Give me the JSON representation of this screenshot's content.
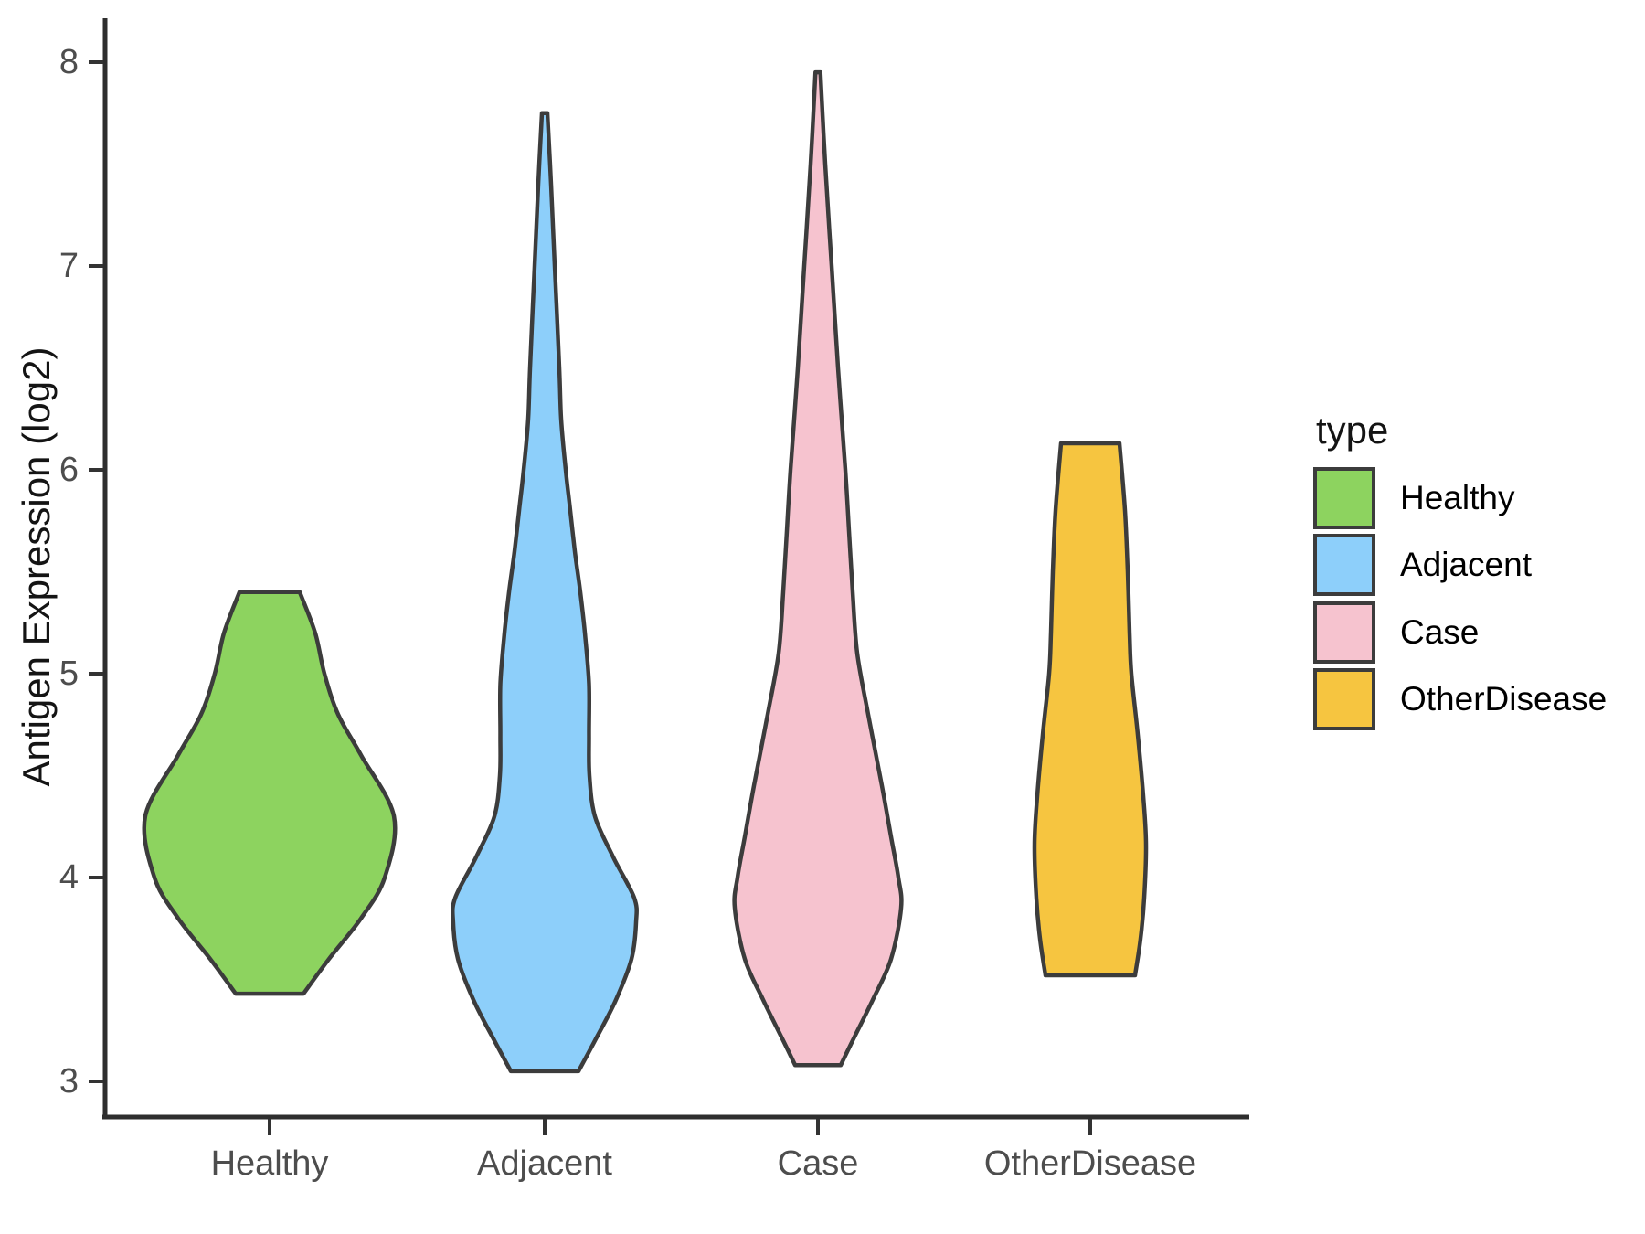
{
  "chart_data": {
    "type": "violin",
    "title": "",
    "xlabel": "",
    "ylabel": "Antigen Expression (log2)",
    "categories": [
      "Healthy",
      "Adjacent",
      "Case",
      "OtherDisease"
    ],
    "y_ticks": [
      "3",
      "4",
      "5",
      "6",
      "7",
      "8"
    ],
    "y_tick_values": [
      3,
      4,
      5,
      6,
      7,
      8
    ],
    "ylim": [
      2.85,
      8.25
    ],
    "grid": false,
    "background": "#FFFFFF",
    "outline_color": "#3C3C3C",
    "axis_color": "#2E2E2E",
    "tick_text_color": "#4D4D4D",
    "legend": {
      "title": "type",
      "position": "right",
      "entries": [
        {
          "label": "Healthy",
          "color": "#8DD35F"
        },
        {
          "label": "Adjacent",
          "color": "#8DCFFA"
        },
        {
          "label": "Case",
          "color": "#F6C3CF"
        },
        {
          "label": "OtherDisease",
          "color": "#F6C540"
        }
      ]
    },
    "series": [
      {
        "name": "Healthy",
        "color": "#8DD35F",
        "min": 3.43,
        "max": 5.4,
        "flat_top": true,
        "flat_bottom": true,
        "profile": [
          [
            5.4,
            0.22
          ],
          [
            5.2,
            0.333
          ],
          [
            5.0,
            0.4
          ],
          [
            4.8,
            0.5
          ],
          [
            4.6,
            0.667
          ],
          [
            4.3,
            0.907
          ],
          [
            4.0,
            0.84
          ],
          [
            3.8,
            0.667
          ],
          [
            3.6,
            0.433
          ],
          [
            3.43,
            0.247
          ]
        ]
      },
      {
        "name": "Adjacent",
        "color": "#8DCFFA",
        "min": 3.05,
        "max": 7.75,
        "flat_top": false,
        "flat_bottom": true,
        "profile": [
          [
            7.75,
            0.02
          ],
          [
            7.4,
            0.047
          ],
          [
            7.0,
            0.073
          ],
          [
            6.5,
            0.107
          ],
          [
            6.25,
            0.12
          ],
          [
            6.0,
            0.153
          ],
          [
            5.8,
            0.187
          ],
          [
            5.6,
            0.22
          ],
          [
            5.4,
            0.26
          ],
          [
            5.2,
            0.293
          ],
          [
            4.95,
            0.323
          ],
          [
            4.7,
            0.323
          ],
          [
            4.5,
            0.327
          ],
          [
            4.3,
            0.367
          ],
          [
            4.1,
            0.5
          ],
          [
            3.9,
            0.653
          ],
          [
            3.78,
            0.667
          ],
          [
            3.6,
            0.633
          ],
          [
            3.4,
            0.52
          ],
          [
            3.2,
            0.367
          ],
          [
            3.05,
            0.247
          ]
        ]
      },
      {
        "name": "Case",
        "color": "#F6C3CF",
        "min": 3.08,
        "max": 7.95,
        "flat_top": false,
        "flat_bottom": true,
        "profile": [
          [
            7.95,
            0.018
          ],
          [
            7.5,
            0.053
          ],
          [
            7.0,
            0.1
          ],
          [
            6.5,
            0.147
          ],
          [
            6.0,
            0.2
          ],
          [
            5.7,
            0.227
          ],
          [
            5.4,
            0.253
          ],
          [
            5.1,
            0.287
          ],
          [
            4.8,
            0.367
          ],
          [
            4.45,
            0.467
          ],
          [
            4.2,
            0.533
          ],
          [
            4.0,
            0.587
          ],
          [
            3.85,
            0.607
          ],
          [
            3.6,
            0.533
          ],
          [
            3.4,
            0.4
          ],
          [
            3.2,
            0.253
          ],
          [
            3.08,
            0.167
          ]
        ]
      },
      {
        "name": "OtherDisease",
        "color": "#F6C540",
        "min": 3.52,
        "max": 6.13,
        "flat_top": true,
        "flat_bottom": true,
        "profile": [
          [
            6.13,
            0.213
          ],
          [
            5.8,
            0.253
          ],
          [
            5.5,
            0.273
          ],
          [
            5.2,
            0.287
          ],
          [
            5.0,
            0.3
          ],
          [
            4.7,
            0.347
          ],
          [
            4.4,
            0.387
          ],
          [
            4.16,
            0.407
          ],
          [
            3.9,
            0.393
          ],
          [
            3.7,
            0.367
          ],
          [
            3.52,
            0.327
          ]
        ]
      }
    ]
  }
}
